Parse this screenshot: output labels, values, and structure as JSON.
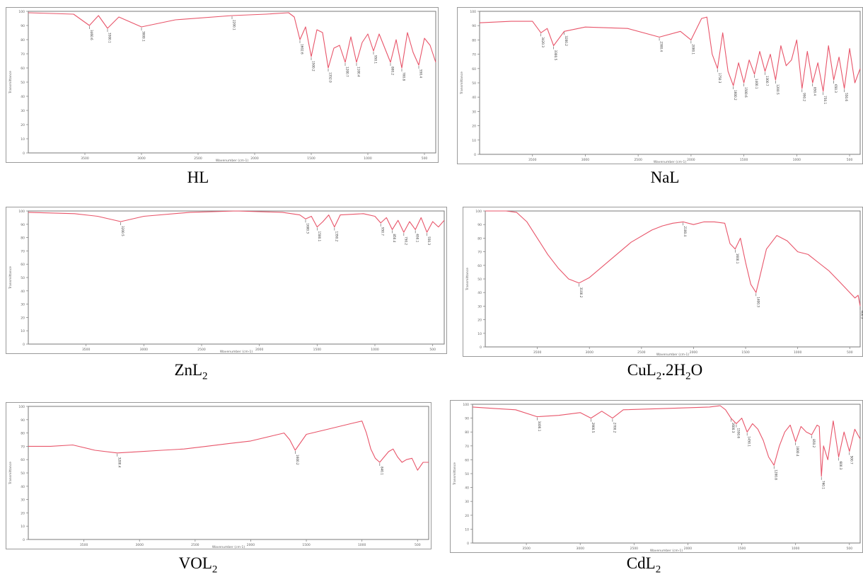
{
  "chart_data": [
    {
      "type": "line",
      "title": "HL",
      "xlabel": "Wavenumber (cm-1)",
      "ylabel": "Transmittance",
      "xlim": [
        4000,
        400
      ],
      "ylim": [
        0,
        100
      ],
      "grid": false,
      "color": "#e8556a",
      "series": [
        {
          "x": [
            4000,
            3600,
            3460,
            3380,
            3300,
            3200,
            3000,
            2700,
            2200,
            1900,
            1700,
            1650,
            1600,
            1550,
            1500,
            1450,
            1400,
            1350,
            1300,
            1250,
            1200,
            1150,
            1100,
            1050,
            1000,
            950,
            900,
            850,
            800,
            750,
            700,
            650,
            600,
            550,
            500,
            450,
            400
          ],
          "y": [
            99,
            98,
            90,
            97,
            88,
            96,
            89,
            94,
            97,
            98,
            99,
            96,
            80,
            89,
            68,
            87,
            85,
            60,
            74,
            76,
            64,
            82,
            64,
            78,
            84,
            72,
            84,
            74,
            64,
            80,
            60,
            85,
            71,
            62,
            81,
            76,
            64
          ]
        }
      ],
      "annotations": [
        {
          "x": 3460,
          "y": 90,
          "label": "3460.6"
        },
        {
          "x": 3300,
          "y": 88,
          "label": "3300.1"
        },
        {
          "x": 3000,
          "y": 89,
          "label": "3000.1"
        },
        {
          "x": 2200,
          "y": 97,
          "label": "2200.1"
        },
        {
          "x": 1600,
          "y": 80,
          "label": "1602.6"
        },
        {
          "x": 1500,
          "y": 68,
          "label": "1500.2"
        },
        {
          "x": 1350,
          "y": 60,
          "label": "1352.0"
        },
        {
          "x": 1200,
          "y": 64,
          "label": "1200.7"
        },
        {
          "x": 1100,
          "y": 64,
          "label": "1100.4"
        },
        {
          "x": 950,
          "y": 72,
          "label": "950.1"
        },
        {
          "x": 800,
          "y": 64,
          "label": "800.2"
        },
        {
          "x": 700,
          "y": 60,
          "label": "700.8"
        },
        {
          "x": 550,
          "y": 62,
          "label": "550.4"
        }
      ]
    },
    {
      "type": "line",
      "title": "NaL",
      "xlabel": "Wavenumber (cm-1)",
      "ylabel": "Transmittance",
      "xlim": [
        4000,
        400
      ],
      "ylim": [
        0,
        100
      ],
      "grid": false,
      "color": "#e8556a",
      "series": [
        {
          "x": [
            4000,
            3700,
            3500,
            3420,
            3360,
            3300,
            3200,
            3000,
            2600,
            2300,
            2100,
            2000,
            1900,
            1850,
            1800,
            1750,
            1700,
            1650,
            1600,
            1550,
            1500,
            1450,
            1400,
            1350,
            1300,
            1250,
            1200,
            1150,
            1100,
            1050,
            1000,
            950,
            900,
            850,
            800,
            750,
            700,
            650,
            600,
            550,
            500,
            450,
            400
          ],
          "y": [
            92,
            93,
            93,
            85,
            88,
            76,
            86,
            89,
            88,
            82,
            86,
            80,
            95,
            96,
            70,
            60,
            85,
            58,
            48,
            64,
            50,
            66,
            56,
            72,
            58,
            70,
            52,
            76,
            62,
            66,
            80,
            46,
            72,
            50,
            64,
            44,
            76,
            52,
            68,
            46,
            74,
            50,
            60
          ]
        }
      ],
      "annotations": [
        {
          "x": 3420,
          "y": 85,
          "label": "3420.3"
        },
        {
          "x": 3300,
          "y": 76,
          "label": "3300.5"
        },
        {
          "x": 3200,
          "y": 86,
          "label": "3200.2"
        },
        {
          "x": 2300,
          "y": 82,
          "label": "2300.4"
        },
        {
          "x": 2000,
          "y": 80,
          "label": "2000.1"
        },
        {
          "x": 1750,
          "y": 60,
          "label": "1750.3"
        },
        {
          "x": 1600,
          "y": 48,
          "label": "1600.2"
        },
        {
          "x": 1500,
          "y": 50,
          "label": "1500.6"
        },
        {
          "x": 1400,
          "y": 56,
          "label": "1400.1"
        },
        {
          "x": 1300,
          "y": 58,
          "label": "1300.7"
        },
        {
          "x": 1200,
          "y": 52,
          "label": "1200.5"
        },
        {
          "x": 950,
          "y": 46,
          "label": "950.2"
        },
        {
          "x": 850,
          "y": 50,
          "label": "850.4"
        },
        {
          "x": 750,
          "y": 44,
          "label": "750.1"
        },
        {
          "x": 650,
          "y": 52,
          "label": "650.3"
        },
        {
          "x": 550,
          "y": 46,
          "label": "550.6"
        }
      ]
    },
    {
      "type": "line",
      "title": "ZnL2",
      "xlabel": "Wavenumber (cm-1)",
      "ylabel": "Transmittance",
      "xlim": [
        4000,
        400
      ],
      "ylim": [
        0,
        100
      ],
      "grid": false,
      "color": "#e8556a",
      "series": [
        {
          "x": [
            4000,
            3600,
            3400,
            3200,
            3000,
            2600,
            2200,
            1800,
            1650,
            1600,
            1550,
            1500,
            1450,
            1400,
            1350,
            1300,
            1100,
            1000,
            950,
            900,
            850,
            800,
            750,
            700,
            650,
            600,
            550,
            500,
            450,
            400
          ],
          "y": [
            99,
            98,
            96,
            92,
            96,
            99,
            100,
            99,
            97,
            94,
            96,
            88,
            92,
            97,
            88,
            97,
            98,
            96,
            91,
            95,
            86,
            93,
            84,
            92,
            86,
            95,
            84,
            92,
            88,
            93
          ]
        }
      ],
      "annotations": [
        {
          "x": 3200,
          "y": 92,
          "label": "3200.5"
        },
        {
          "x": 1600,
          "y": 94,
          "label": "1600.3"
        },
        {
          "x": 1500,
          "y": 88,
          "label": "1500.1"
        },
        {
          "x": 1350,
          "y": 88,
          "label": "1350.2"
        },
        {
          "x": 950,
          "y": 91,
          "label": "950.7"
        },
        {
          "x": 850,
          "y": 86,
          "label": "850.4"
        },
        {
          "x": 750,
          "y": 84,
          "label": "750.2"
        },
        {
          "x": 650,
          "y": 86,
          "label": "650.1"
        },
        {
          "x": 550,
          "y": 84,
          "label": "550.3"
        }
      ]
    },
    {
      "type": "line",
      "title": "CuL2.2H2O",
      "xlabel": "Wavenumber (cm-1)",
      "ylabel": "Transmittance",
      "xlim": [
        4000,
        400
      ],
      "ylim": [
        0,
        100
      ],
      "grid": false,
      "color": "#e8556a",
      "series": [
        {
          "x": [
            4000,
            3800,
            3700,
            3600,
            3500,
            3400,
            3300,
            3200,
            3100,
            3000,
            2800,
            2600,
            2400,
            2300,
            2200,
            2100,
            2000,
            1900,
            1800,
            1700,
            1650,
            1600,
            1550,
            1500,
            1450,
            1400,
            1300,
            1200,
            1100,
            1000,
            900,
            800,
            700,
            600,
            500,
            450,
            420,
            400
          ],
          "y": [
            100,
            100,
            99,
            92,
            80,
            68,
            58,
            50,
            47,
            51,
            64,
            77,
            86,
            89,
            91,
            92,
            90,
            92,
            92,
            91,
            76,
            72,
            80,
            62,
            46,
            40,
            72,
            82,
            78,
            70,
            68,
            62,
            56,
            48,
            40,
            36,
            38,
            30
          ]
        }
      ],
      "annotations": [
        {
          "x": 3100,
          "y": 47,
          "label": "3100.2"
        },
        {
          "x": 2100,
          "y": 92,
          "label": "2100.4"
        },
        {
          "x": 1600,
          "y": 72,
          "label": "1600.1"
        },
        {
          "x": 1400,
          "y": 40,
          "label": "1400.3"
        },
        {
          "x": 400,
          "y": 30,
          "label": "400.5"
        }
      ]
    },
    {
      "type": "line",
      "title": "VOL2",
      "xlabel": "Wavenumber (cm-1)",
      "ylabel": "Transmittance",
      "xlim": [
        4000,
        400
      ],
      "ylim": [
        0,
        100
      ],
      "grid": false,
      "color": "#e8556a",
      "series": [
        {
          "x": [
            4000,
            3800,
            3600,
            3400,
            3200,
            3000,
            2800,
            2600,
            2400,
            2200,
            2000,
            1800,
            1700,
            1650,
            1600,
            1500,
            1300,
            1100,
            1000,
            960,
            920,
            880,
            840,
            800,
            760,
            720,
            680,
            640,
            600,
            550,
            500,
            450,
            400
          ],
          "y": [
            70,
            70,
            71,
            67,
            65,
            66,
            67,
            68,
            70,
            72,
            74,
            78,
            80,
            75,
            67,
            79,
            83,
            87,
            89,
            80,
            68,
            61,
            58,
            62,
            66,
            68,
            62,
            58,
            60,
            61,
            52,
            58,
            58
          ]
        }
      ],
      "annotations": [
        {
          "x": 3200,
          "y": 65,
          "label": "3200.4"
        },
        {
          "x": 1600,
          "y": 67,
          "label": "1600.2"
        },
        {
          "x": 840,
          "y": 58,
          "label": "840.1"
        }
      ]
    },
    {
      "type": "line",
      "title": "CdL2",
      "xlabel": "Wavenumber (cm-1)",
      "ylabel": "Transmittance",
      "xlim": [
        4000,
        400
      ],
      "ylim": [
        0,
        100
      ],
      "grid": false,
      "color": "#e8556a",
      "series": [
        {
          "x": [
            4000,
            3800,
            3600,
            3400,
            3200,
            3000,
            2900,
            2800,
            2700,
            2600,
            2200,
            1800,
            1700,
            1650,
            1600,
            1550,
            1500,
            1450,
            1400,
            1350,
            1300,
            1250,
            1200,
            1150,
            1100,
            1050,
            1000,
            950,
            900,
            850,
            800,
            780,
            760,
            740,
            700,
            650,
            600,
            550,
            500,
            450,
            400
          ],
          "y": [
            98,
            97,
            96,
            91,
            92,
            94,
            90,
            95,
            90,
            96,
            97,
            98,
            99,
            96,
            90,
            86,
            90,
            80,
            86,
            82,
            74,
            62,
            56,
            70,
            80,
            85,
            73,
            84,
            80,
            78,
            85,
            84,
            48,
            70,
            60,
            88,
            62,
            80,
            66,
            82,
            75
          ]
        }
      ],
      "annotations": [
        {
          "x": 3400,
          "y": 91,
          "label": "3400.1"
        },
        {
          "x": 2900,
          "y": 90,
          "label": "2900.5"
        },
        {
          "x": 2700,
          "y": 90,
          "label": "2700.2"
        },
        {
          "x": 1600,
          "y": 90,
          "label": "1600.3"
        },
        {
          "x": 1550,
          "y": 86,
          "label": "1550.6"
        },
        {
          "x": 1450,
          "y": 80,
          "label": "1450.1"
        },
        {
          "x": 1200,
          "y": 56,
          "label": "1200.8"
        },
        {
          "x": 1000,
          "y": 73,
          "label": "1000.4"
        },
        {
          "x": 850,
          "y": 78,
          "label": "850.2"
        },
        {
          "x": 760,
          "y": 48,
          "label": "760.1"
        },
        {
          "x": 600,
          "y": 62,
          "label": "600.3"
        },
        {
          "x": 500,
          "y": 66,
          "label": "500.7"
        }
      ]
    }
  ],
  "captions": {
    "hl": "HL",
    "nal": "NaL",
    "znl2_base": "ZnL",
    "znl2_sub": "2",
    "cul2_a": "CuL",
    "cul2_b": "2",
    "cul2_c": ".2H",
    "cul2_d": "2",
    "cul2_e": "O",
    "vol2_base": "VOL",
    "vol2_sub": "2",
    "cdl2_base": "CdL",
    "cdl2_sub": "2"
  }
}
